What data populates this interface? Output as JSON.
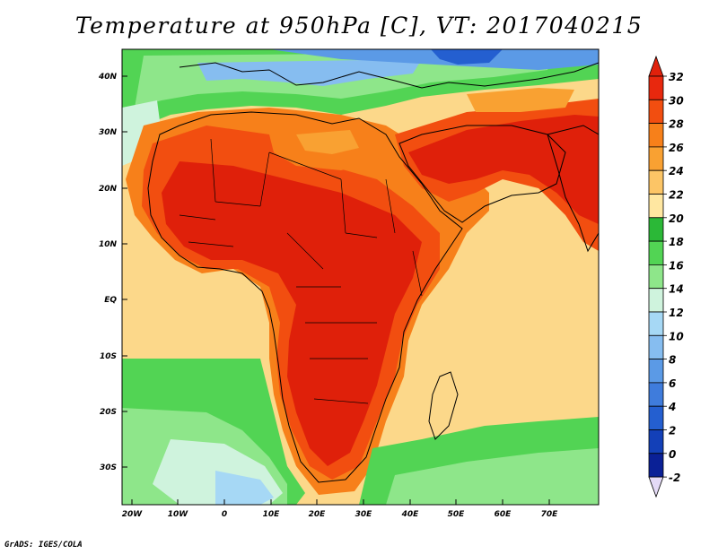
{
  "title": "Temperature at 950hPa [C], VT: 2017040215",
  "footer": "GrADS: IGES/COLA",
  "map": {
    "lat_ticks": [
      "40N",
      "30N",
      "20N",
      "10N",
      "EQ",
      "10S",
      "20S",
      "30S"
    ],
    "lon_ticks": [
      "20W",
      "10W",
      "0",
      "10E",
      "20E",
      "30E",
      "40E",
      "50E",
      "60E",
      "70E"
    ],
    "extent": {
      "lon_min": -22,
      "lon_max": 80,
      "lat_min": -37,
      "lat_max": 45
    }
  },
  "colorbar": {
    "labels": [
      "32",
      "30",
      "28",
      "26",
      "24",
      "22",
      "20",
      "18",
      "16",
      "14",
      "12",
      "10",
      "8",
      "6",
      "4",
      "2",
      "0",
      "-2"
    ],
    "colors": [
      "#e8280e",
      "#f24e10",
      "#f7801a",
      "#f9a132",
      "#fcc566",
      "#ffe7a1",
      "#2bb837",
      "#52d454",
      "#8ee68a",
      "#cff3dd",
      "#a6d8f5",
      "#86bdf0",
      "#5b9ae6",
      "#3f7cdc",
      "#245fd0",
      "#1340b8",
      "#0a2096"
    ],
    "top_arrow_color": "#e0210b",
    "bottom_arrow_color": "#e4daf6"
  },
  "palette": {
    "hot": "#df200a",
    "warm": "#f25e12",
    "orange": "#f8a23a",
    "light_orange": "#fbcf7c",
    "pale": "#fde4a0",
    "green": "#45c75a",
    "light_green": "#9fe79a",
    "cyan": "#bdeef0",
    "blue": "#7eb6ee",
    "deep_blue": "#3f6fe0"
  }
}
